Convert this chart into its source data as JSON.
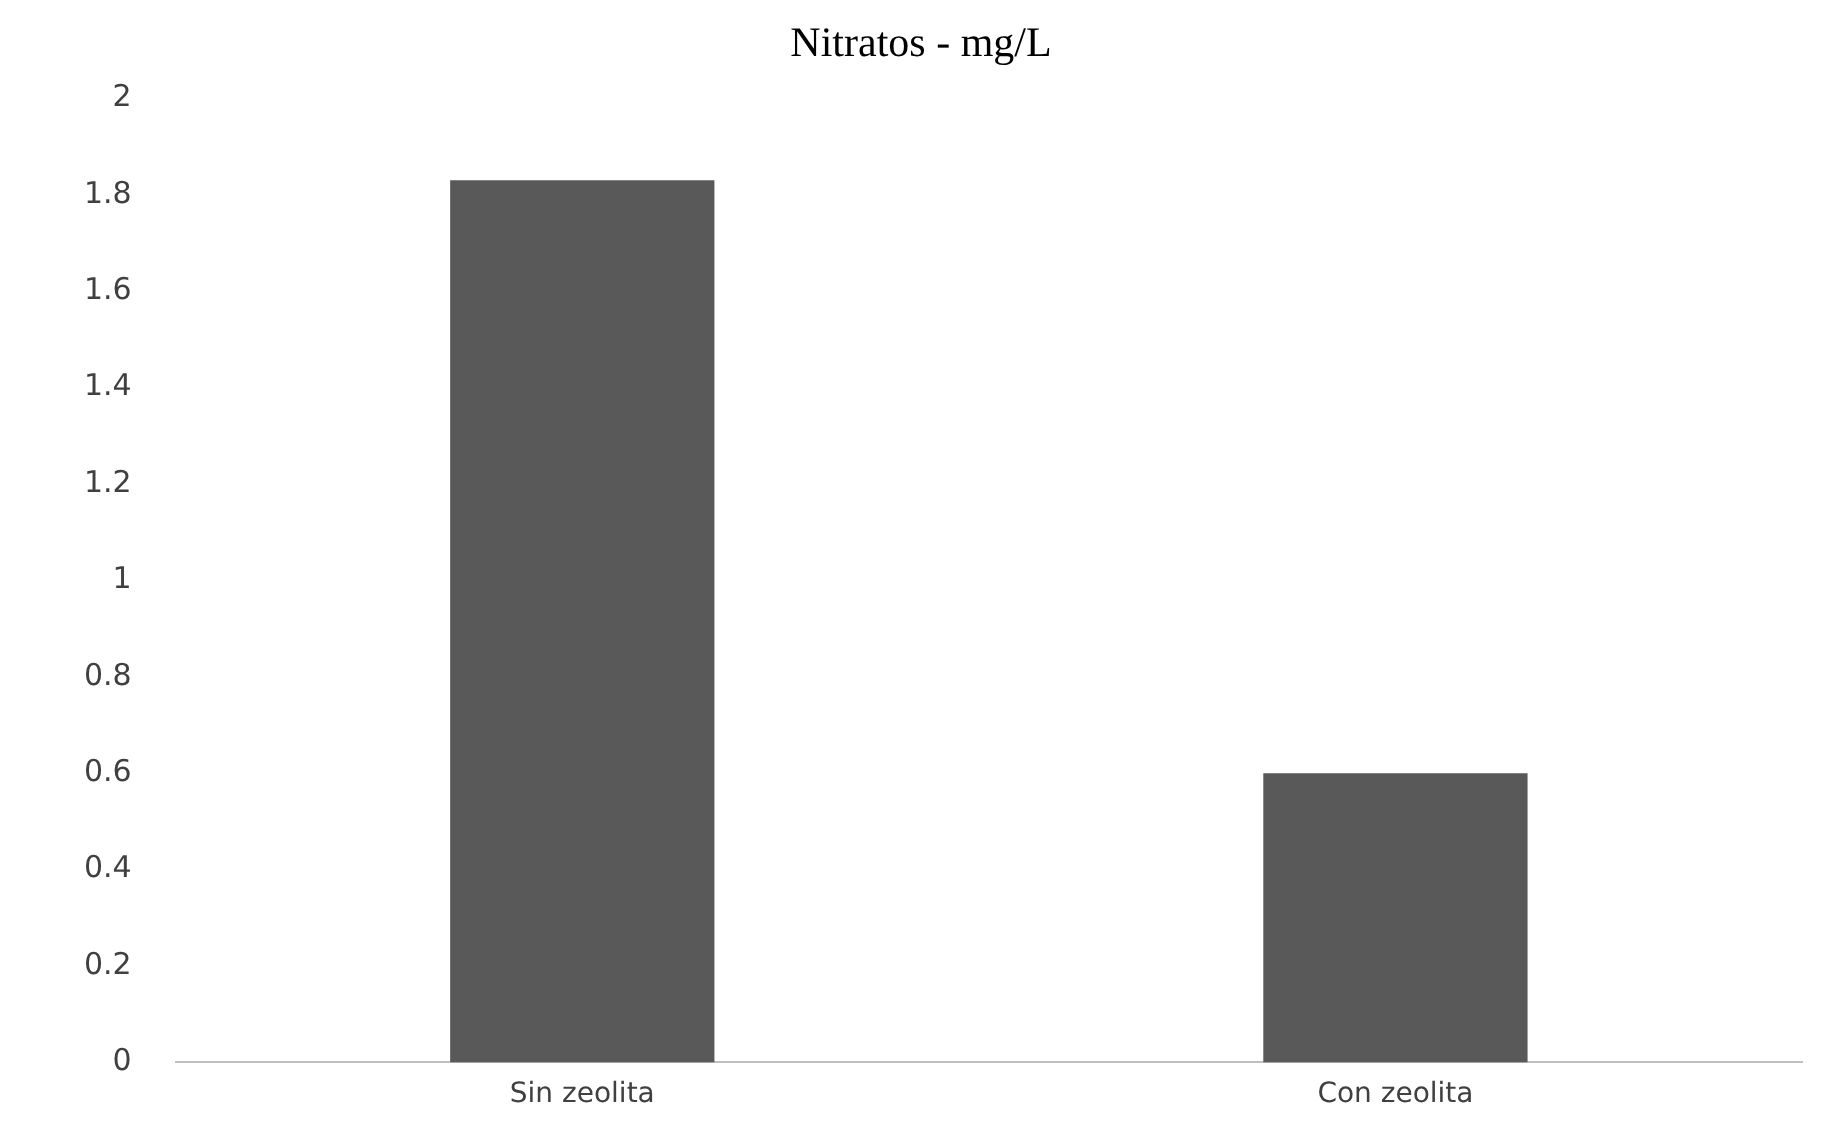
{
  "chart_data": {
    "type": "bar",
    "title": "Nitratos - mg/L",
    "categories": [
      "Sin zeolita",
      "Con zeolita"
    ],
    "values": [
      1.83,
      0.6
    ],
    "color": "#595959",
    "ylim": [
      0,
      2
    ],
    "yticks": [
      0,
      0.2,
      0.4,
      0.6,
      0.8,
      1,
      1.2,
      1.4,
      1.6,
      1.8,
      2
    ],
    "grid": false,
    "legend": false
  }
}
